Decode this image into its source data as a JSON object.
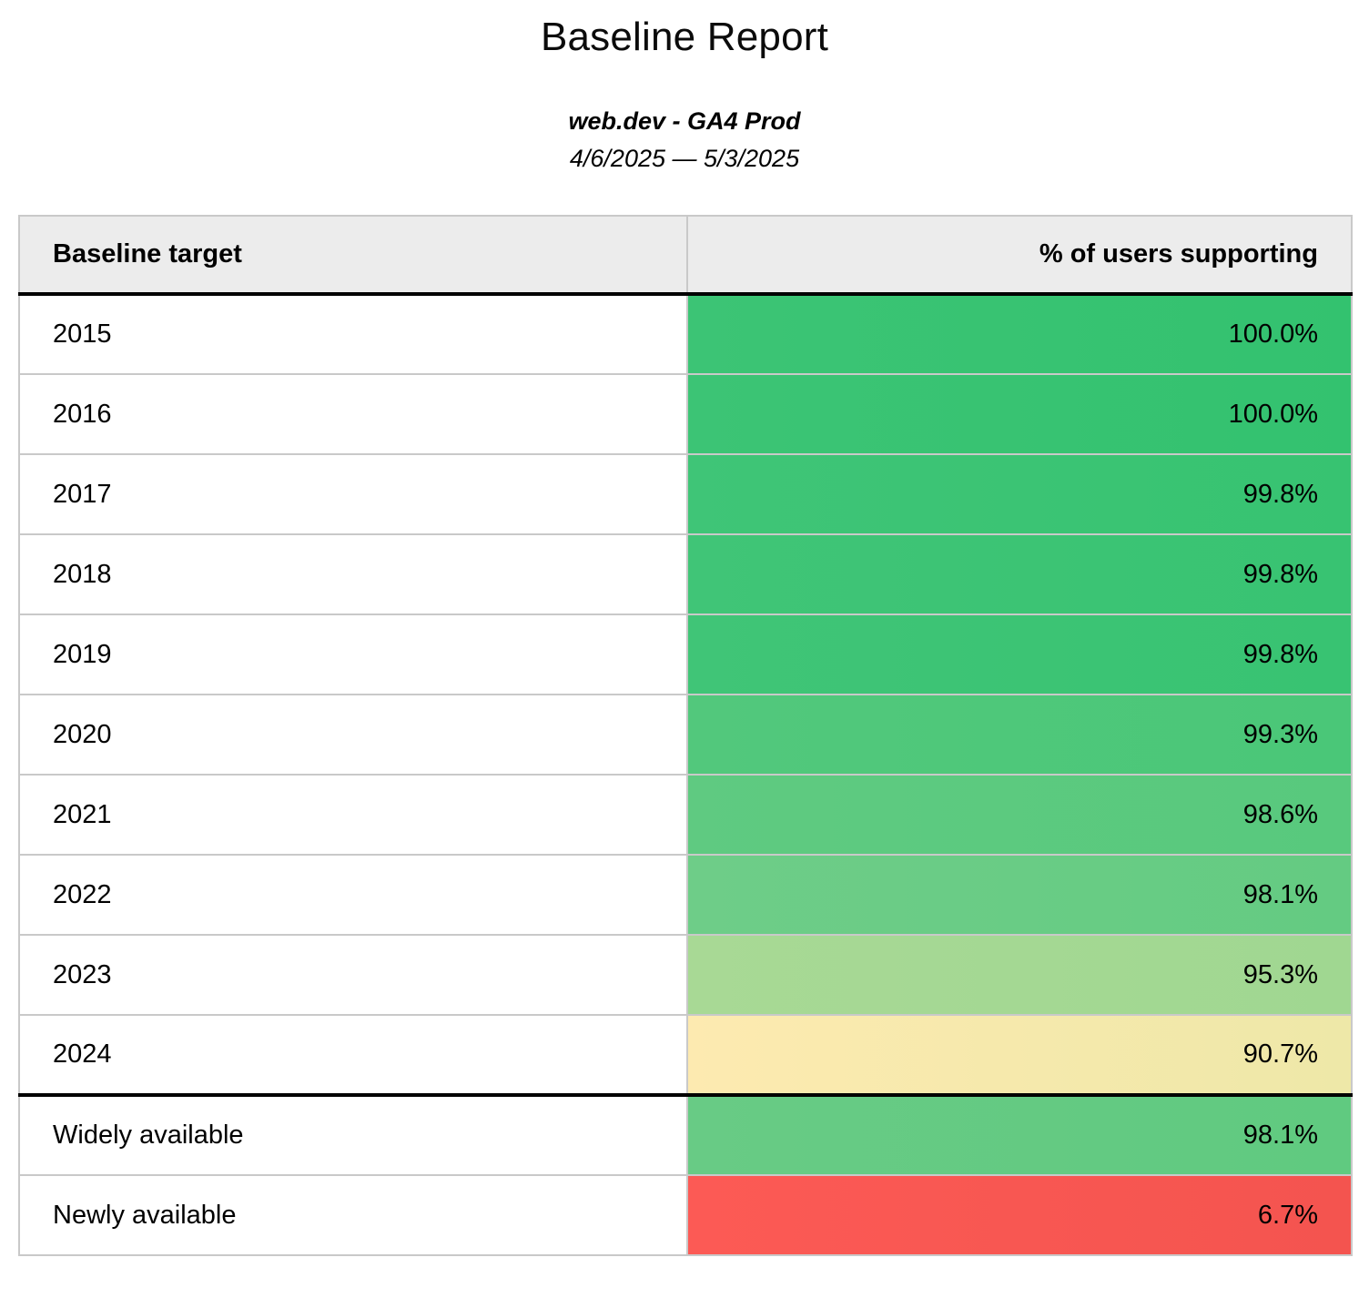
{
  "header": {
    "title": "Baseline Report",
    "subtitle": "web.dev - GA4 Prod",
    "date_range": "4/6/2025 — 5/3/2025"
  },
  "table": {
    "columns": [
      "Baseline target",
      "% of users supporting"
    ],
    "rows": [
      {
        "label": "2015",
        "value": "100.0%",
        "bg_left": "#3cc475",
        "bg_right": "#33c26f",
        "separator_above": false
      },
      {
        "label": "2016",
        "value": "100.0%",
        "bg_left": "#3cc475",
        "bg_right": "#33c26f",
        "separator_above": false
      },
      {
        "label": "2017",
        "value": "99.8%",
        "bg_left": "#3fc577",
        "bg_right": "#37c371",
        "separator_above": false
      },
      {
        "label": "2018",
        "value": "99.8%",
        "bg_left": "#40c577",
        "bg_right": "#38c372",
        "separator_above": false
      },
      {
        "label": "2019",
        "value": "99.8%",
        "bg_left": "#40c577",
        "bg_right": "#38c372",
        "separator_above": false
      },
      {
        "label": "2020",
        "value": "99.3%",
        "bg_left": "#52c87c",
        "bg_right": "#4ac778",
        "separator_above": false
      },
      {
        "label": "2021",
        "value": "98.6%",
        "bg_left": "#5fca81",
        "bg_right": "#58c97d",
        "separator_above": false
      },
      {
        "label": "2022",
        "value": "98.1%",
        "bg_left": "#6ecd88",
        "bg_right": "#64cb82",
        "separator_above": false
      },
      {
        "label": "2023",
        "value": "95.3%",
        "bg_left": "#a8d995",
        "bg_right": "#a0d791",
        "separator_above": false
      },
      {
        "label": "2024",
        "value": "90.7%",
        "bg_left": "#fdeab0",
        "bg_right": "#eee8a8",
        "separator_above": false
      },
      {
        "label": "Widely available",
        "value": "98.1%",
        "bg_left": "#68cb85",
        "bg_right": "#60ca80",
        "separator_above": true
      },
      {
        "label": "Newly available",
        "value": "6.7%",
        "bg_left": "#fc5a55",
        "bg_right": "#f4544f",
        "separator_above": false
      }
    ]
  },
  "colors": {
    "header_bg": "#ececec",
    "cell_border": "#c9c9c9",
    "separator": "#000000",
    "green_full": "#3cc475",
    "yellow": "#fdeab0",
    "red": "#fc5a55"
  },
  "chart_data": {
    "type": "table",
    "title": "Baseline Report",
    "subtitle": "web.dev - GA4 Prod",
    "date_range": "4/6/2025 — 5/3/2025",
    "columns": [
      "Baseline target",
      "% of users supporting"
    ],
    "categories": [
      "2015",
      "2016",
      "2017",
      "2018",
      "2019",
      "2020",
      "2021",
      "2022",
      "2023",
      "2024",
      "Widely available",
      "Newly available"
    ],
    "values": [
      100.0,
      100.0,
      99.8,
      99.8,
      99.8,
      99.3,
      98.6,
      98.1,
      95.3,
      90.7,
      98.1,
      6.7
    ],
    "value_format": "percent_1dp",
    "layout_hints": {
      "value_column_color_scale": "green(high) -> yellow(~90) -> red(low)",
      "thick_divider_after_row": "2024"
    }
  }
}
